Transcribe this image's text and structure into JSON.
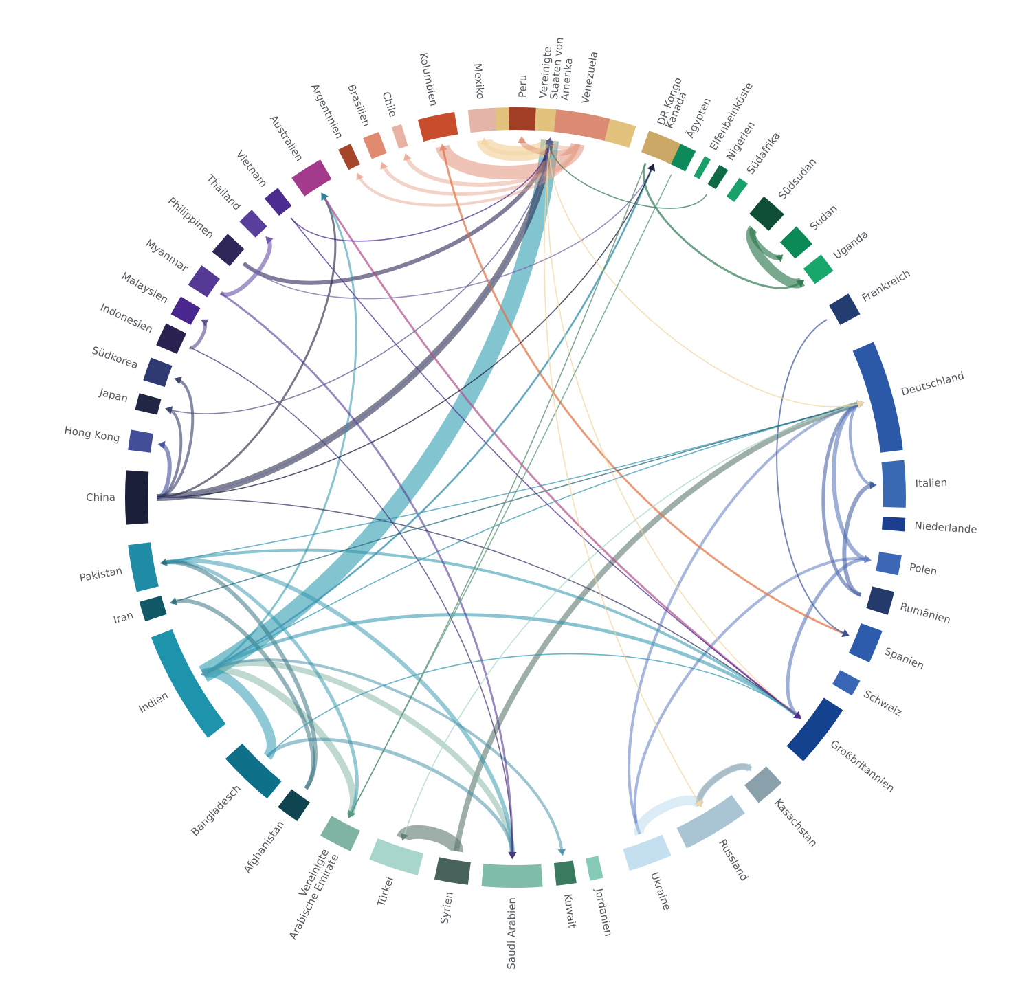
{
  "countries": [
    {
      "id": "usa",
      "label": [
        "Vereinigte",
        "Staaten von",
        "Amerika"
      ],
      "color": "#e3c27e"
    },
    {
      "id": "drkongo",
      "label": [
        "DR Kongo"
      ],
      "color": "#1f5c3a"
    },
    {
      "id": "aegypten",
      "label": [
        "Ägypten"
      ],
      "color": "#0c8a5a"
    },
    {
      "id": "elfenbeinkueste",
      "label": [
        "Elfenbeinküste"
      ],
      "color": "#1aa06a"
    },
    {
      "id": "nigerien",
      "label": [
        "Nigerien"
      ],
      "color": "#0e6b45"
    },
    {
      "id": "suedafrika",
      "label": [
        "Südafrika"
      ],
      "color": "#1aa06a"
    },
    {
      "id": "suedsudan",
      "label": [
        "Südsudan"
      ],
      "color": "#0e4e34"
    },
    {
      "id": "sudan",
      "label": [
        "Sudan"
      ],
      "color": "#0b8a58"
    },
    {
      "id": "uganda",
      "label": [
        "Uganda"
      ],
      "color": "#17a76a"
    },
    {
      "id": "frankreich",
      "label": [
        "Frankreich"
      ],
      "color": "#233c72"
    },
    {
      "id": "deutschland",
      "label": [
        "Deutschland"
      ],
      "color": "#2c58a8"
    },
    {
      "id": "italien",
      "label": [
        "Italien"
      ],
      "color": "#3a69b4"
    },
    {
      "id": "niederlande",
      "label": [
        "Niederlande"
      ],
      "color": "#1b3f8e"
    },
    {
      "id": "polen",
      "label": [
        "Polen"
      ],
      "color": "#3c67b6"
    },
    {
      "id": "rumaenien",
      "label": [
        "Rumänien"
      ],
      "color": "#243a6a"
    },
    {
      "id": "spanien",
      "label": [
        "Spanien"
      ],
      "color": "#2c5cab"
    },
    {
      "id": "schweiz",
      "label": [
        "Schweiz"
      ],
      "color": "#3a66b6"
    },
    {
      "id": "grossbritannien",
      "label": [
        "Großbritannien"
      ],
      "color": "#15428f"
    },
    {
      "id": "kasachstan",
      "label": [
        "Kasachstan"
      ],
      "color": "#8aa0ab"
    },
    {
      "id": "russland",
      "label": [
        "Russland"
      ],
      "color": "#a9c5d4"
    },
    {
      "id": "ukraine",
      "label": [
        "Ukraine"
      ],
      "color": "#c4dff0"
    },
    {
      "id": "jordanien",
      "label": [
        "Jordanien"
      ],
      "color": "#86cbb7"
    },
    {
      "id": "kuwait",
      "label": [
        "Kuwait"
      ],
      "color": "#3a7a5e"
    },
    {
      "id": "saudiarabien",
      "label": [
        "Saudi Arabien"
      ],
      "color": "#7fbcaa"
    },
    {
      "id": "syrien",
      "label": [
        "Syrien"
      ],
      "color": "#46625a"
    },
    {
      "id": "tuerkei",
      "label": [
        "Türkei"
      ],
      "color": "#a9d6cc"
    },
    {
      "id": "vae",
      "label": [
        "Vereinigte",
        "Arabische Emirate"
      ],
      "color": "#7fb4a4"
    },
    {
      "id": "afghanistan",
      "label": [
        "Afghanistan"
      ],
      "color": "#0f4451"
    },
    {
      "id": "bangladesch",
      "label": [
        "Bangladesch"
      ],
      "color": "#0e7189"
    },
    {
      "id": "indien",
      "label": [
        "Indien"
      ],
      "color": "#1e93ac"
    },
    {
      "id": "iran",
      "label": [
        "Iran"
      ],
      "color": "#115867"
    },
    {
      "id": "pakistan",
      "label": [
        "Pakistan"
      ],
      "color": "#1f8ba4"
    },
    {
      "id": "china",
      "label": [
        "China"
      ],
      "color": "#1c1f3a"
    },
    {
      "id": "hongkong",
      "label": [
        "Hong Kong"
      ],
      "color": "#434e99"
    },
    {
      "id": "japan",
      "label": [
        "Japan"
      ],
      "color": "#222645"
    },
    {
      "id": "suedkorea",
      "label": [
        "Südkorea"
      ],
      "color": "#2f3a72"
    },
    {
      "id": "indonesien",
      "label": [
        "Indonesien"
      ],
      "color": "#2b2150"
    },
    {
      "id": "malaysien",
      "label": [
        "Malaysien"
      ],
      "color": "#4a278e"
    },
    {
      "id": "myanmar",
      "label": [
        "Myanmar"
      ],
      "color": "#553a95"
    },
    {
      "id": "philippinen",
      "label": [
        "Philippinen"
      ],
      "color": "#2f2659"
    },
    {
      "id": "thailand",
      "label": [
        "Thailand"
      ],
      "color": "#5a3e9c"
    },
    {
      "id": "vietnam",
      "label": [
        "Vietnam"
      ],
      "color": "#4c2c90"
    },
    {
      "id": "australien",
      "label": [
        "Australien"
      ],
      "color": "#a33a8c"
    },
    {
      "id": "argentinien",
      "label": [
        "Argentinien"
      ],
      "color": "#a5452a"
    },
    {
      "id": "brasilien",
      "label": [
        "Brasilien"
      ],
      "color": "#e08a70"
    },
    {
      "id": "chile",
      "label": [
        "Chile"
      ],
      "color": "#e7b2a4"
    },
    {
      "id": "kolumbien",
      "label": [
        "Kolumbien"
      ],
      "color": "#c74d2d"
    },
    {
      "id": "mexiko",
      "label": [
        "Mexiko"
      ],
      "color": "#e5b4a8"
    },
    {
      "id": "peru",
      "label": [
        "Peru"
      ],
      "color": "#a13e25"
    },
    {
      "id": "venezuela",
      "label": [
        "Venezuela"
      ],
      "color": "#db8a73"
    },
    {
      "id": "kanada",
      "label": [
        "Kanada"
      ],
      "color": "#cca866"
    }
  ]
}
